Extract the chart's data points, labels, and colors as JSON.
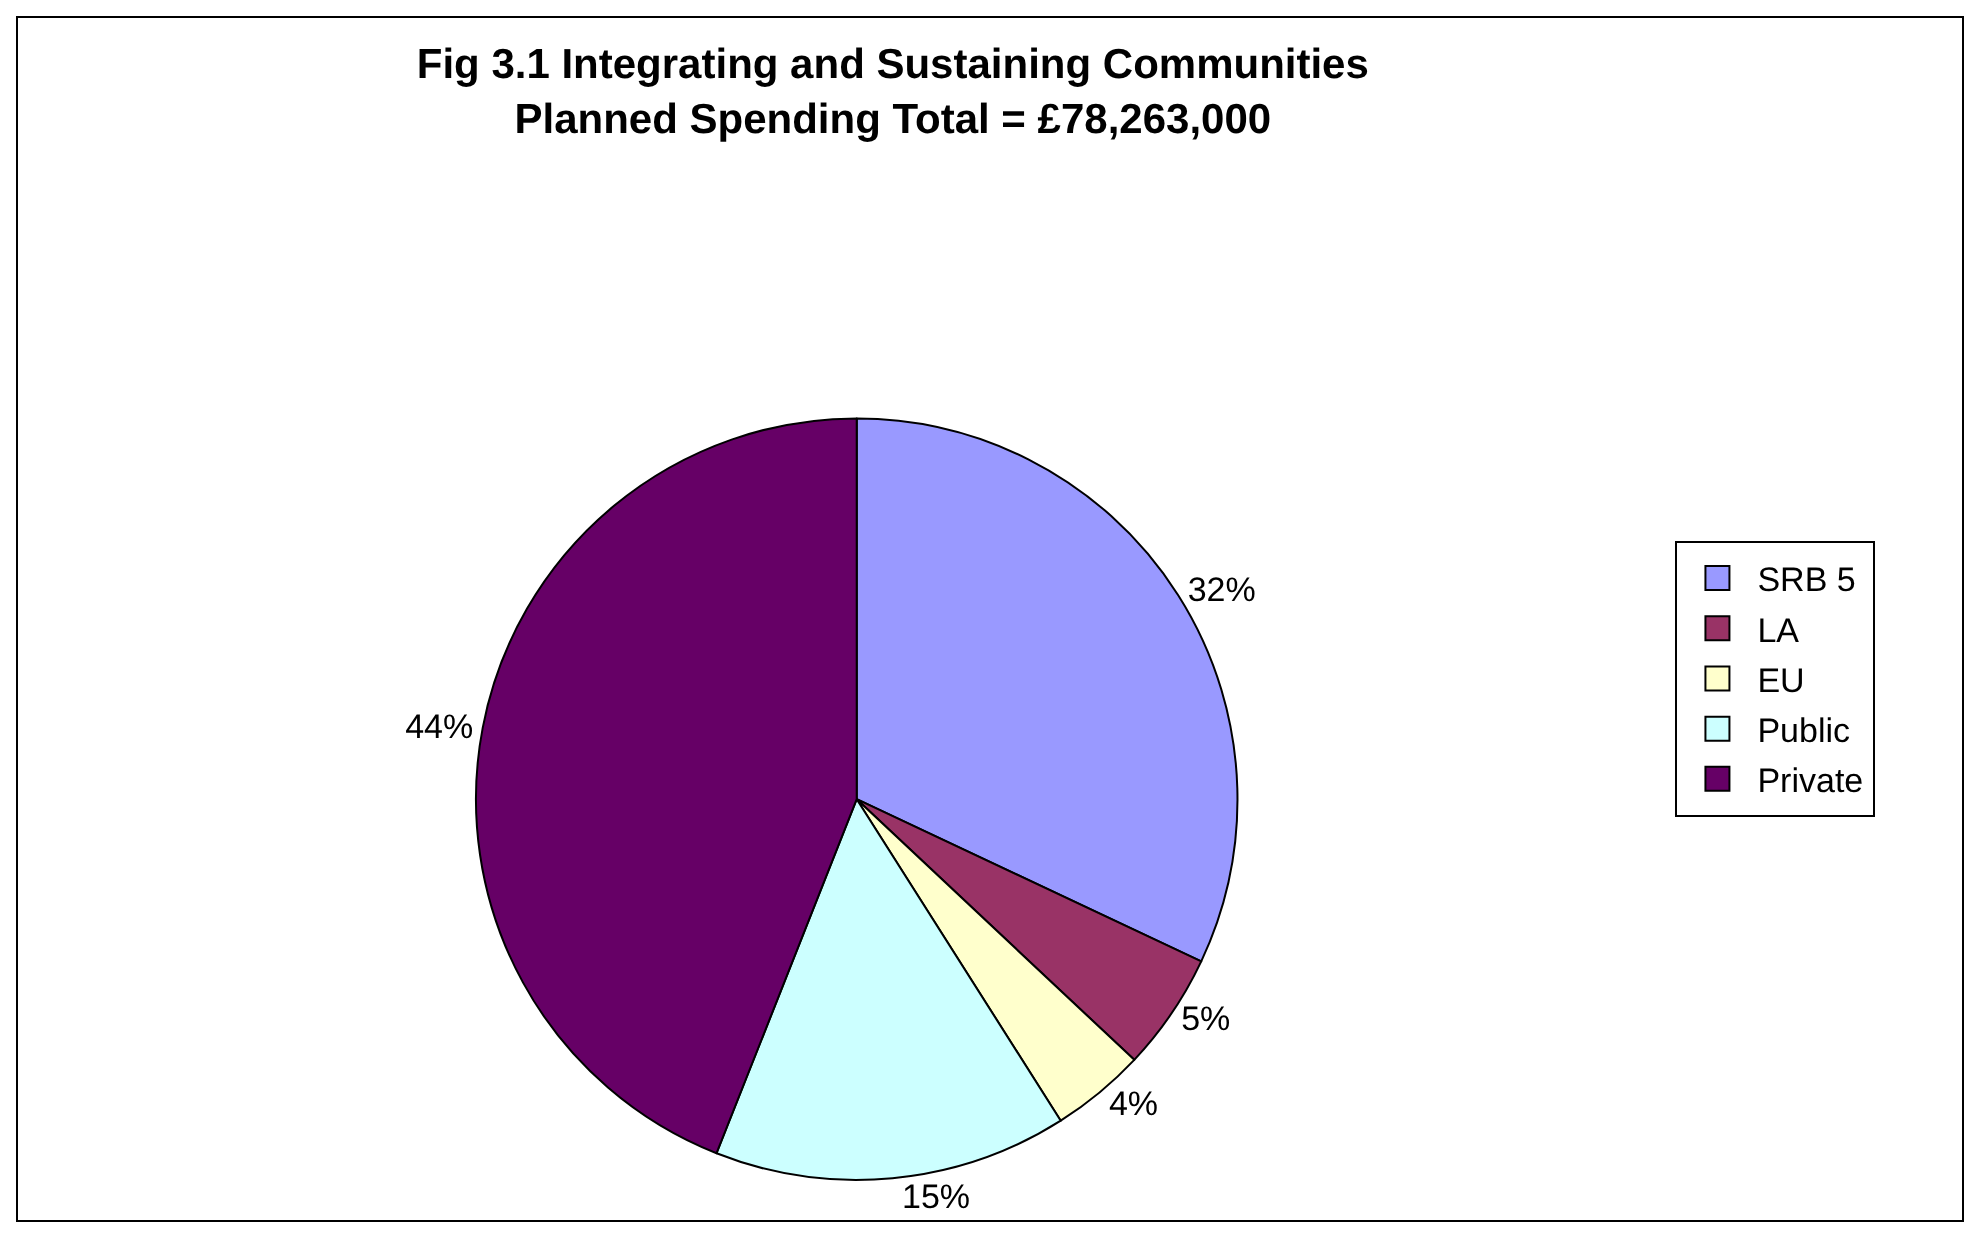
{
  "chart_data": {
    "type": "pie",
    "title": "Fig 3.1 Integrating and Sustaining Communities\nPlanned Spending Total = £78,263,000",
    "categories": [
      "SRB 5",
      "LA",
      "EU",
      "Public",
      "Private"
    ],
    "values": [
      32,
      5,
      4,
      15,
      44
    ],
    "value_labels": [
      "32%",
      "5%",
      "4%",
      "15%",
      "44%"
    ],
    "colors": [
      "#9999ff",
      "#993366",
      "#ffffcc",
      "#ccffff",
      "#660066"
    ],
    "legend": "right"
  }
}
